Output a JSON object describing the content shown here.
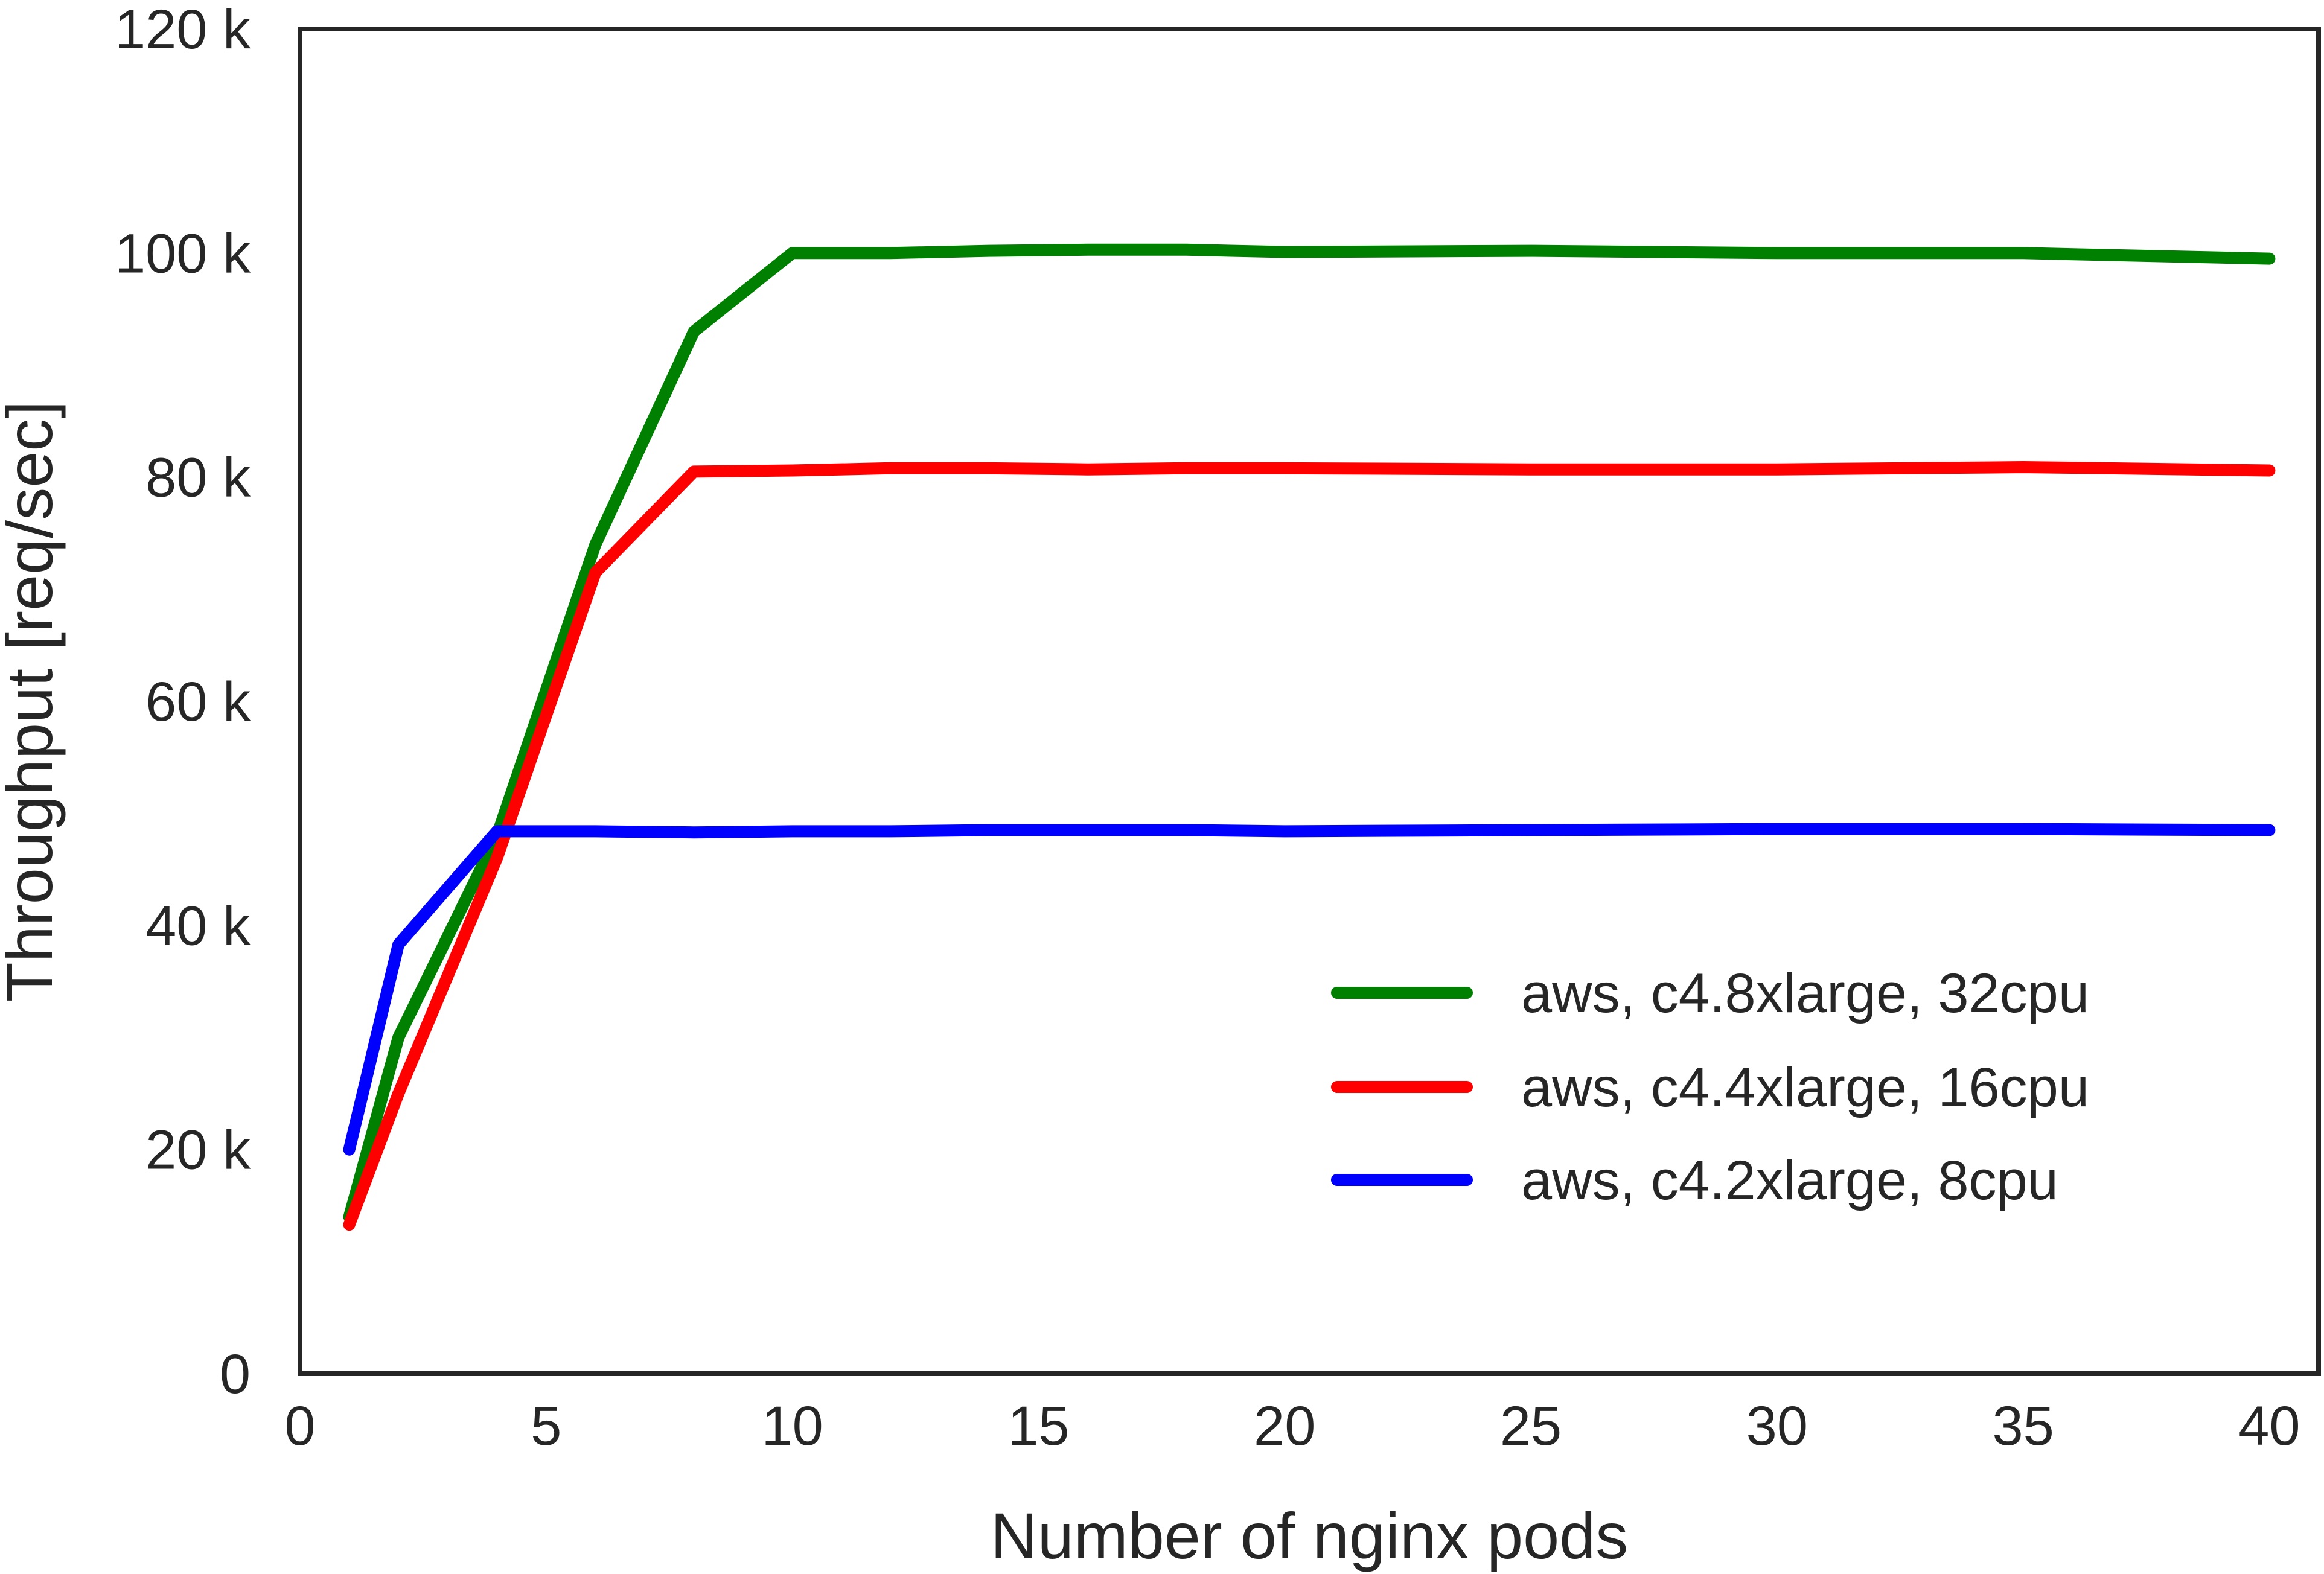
{
  "chart_data": {
    "type": "line",
    "title": "",
    "xlabel": "Number of nginx pods",
    "ylabel": "Throughput [req/sec]",
    "xlim": [
      0,
      41
    ],
    "ylim": [
      0,
      120000
    ],
    "xticks": [
      0,
      5,
      10,
      15,
      20,
      25,
      30,
      35,
      40
    ],
    "xtick_labels": [
      "0",
      "5",
      "10",
      "15",
      "20",
      "25",
      "30",
      "35",
      "40"
    ],
    "yticks": [
      0,
      20000,
      40000,
      60000,
      80000,
      100000,
      120000
    ],
    "ytick_labels": [
      "0",
      "20 k",
      "40 k",
      "60 k",
      "80 k",
      "100 k",
      "120 k"
    ],
    "grid": false,
    "legend_position": "lower-right",
    "series": [
      {
        "name": "aws, c4.8xlarge, 32cpu",
        "color": "#008000",
        "x": [
          1,
          2,
          4,
          6,
          8,
          10,
          12,
          14,
          16,
          18,
          20,
          25,
          30,
          35,
          40
        ],
        "y": [
          14000,
          30000,
          48000,
          74000,
          93000,
          100000,
          100000,
          100200,
          100300,
          100300,
          100100,
          100200,
          100000,
          100000,
          99500
        ]
      },
      {
        "name": "aws, c4.4xlarge, 16cpu",
        "color": "#ff0000",
        "x": [
          1,
          2,
          4,
          6,
          8,
          10,
          12,
          14,
          16,
          18,
          20,
          25,
          30,
          35,
          40
        ],
        "y": [
          13300,
          25000,
          46000,
          71500,
          80500,
          80600,
          80800,
          80800,
          80700,
          80800,
          80800,
          80700,
          80700,
          80900,
          80600
        ]
      },
      {
        "name": "aws, c4.2xlarge, 8cpu",
        "color": "#0000ff",
        "x": [
          1,
          2,
          4,
          6,
          8,
          10,
          12,
          14,
          16,
          18,
          20,
          25,
          30,
          35,
          40
        ],
        "y": [
          20000,
          38300,
          48400,
          48400,
          48300,
          48400,
          48400,
          48500,
          48500,
          48500,
          48400,
          48500,
          48600,
          48600,
          48500
        ]
      }
    ]
  }
}
